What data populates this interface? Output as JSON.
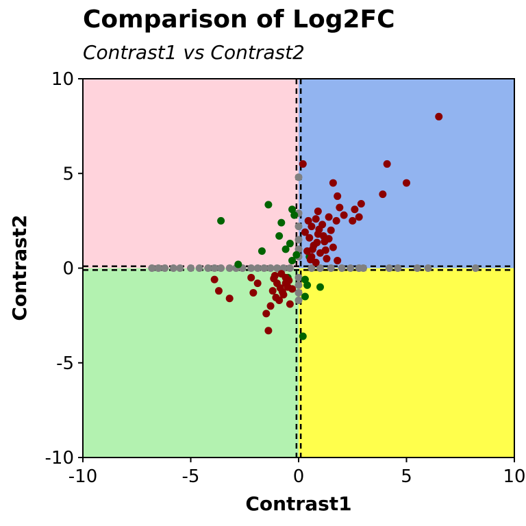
{
  "chart_data": {
    "type": "scatter",
    "title": "Comparison of Log2FC",
    "subtitle": "Contrast1 vs Contrast2",
    "xlabel": "Contrast1",
    "ylabel": "Contrast2",
    "xlim": [
      -10,
      10
    ],
    "ylim": [
      -10,
      10
    ],
    "xticks": [
      -10,
      -5,
      0,
      5,
      10
    ],
    "yticks": [
      -10,
      -5,
      0,
      5,
      10
    ],
    "xtick_labels": [
      "-10",
      "-5",
      "0",
      "5",
      "10"
    ],
    "ytick_labels": [
      "-10",
      "-5",
      "0",
      "5",
      "10"
    ],
    "grid": false,
    "threshold_lines": {
      "x": [
        -0.1,
        0.1
      ],
      "y": [
        -0.1,
        0.1
      ],
      "style": "dashed",
      "color": "#000000"
    },
    "quadrants": [
      {
        "region": "upper-left",
        "color": "#ffd3dc"
      },
      {
        "region": "upper-right",
        "color": "#92b4f0"
      },
      {
        "region": "lower-left",
        "color": "#b3f2b0"
      },
      {
        "region": "lower-right",
        "color": "#ffff4c"
      }
    ],
    "series": [
      {
        "color": "#808080",
        "points": [
          [
            -6.8,
            0
          ],
          [
            -6.5,
            0
          ],
          [
            -6.2,
            0
          ],
          [
            -5.8,
            0
          ],
          [
            -5.5,
            0
          ],
          [
            -5.0,
            0
          ],
          [
            -4.6,
            0
          ],
          [
            -4.2,
            0
          ],
          [
            -3.9,
            0
          ],
          [
            -3.6,
            0
          ],
          [
            -3.2,
            0
          ],
          [
            -2.9,
            0
          ],
          [
            -2.6,
            0
          ],
          [
            -2.2,
            0
          ],
          [
            -1.9,
            0
          ],
          [
            -1.6,
            0
          ],
          [
            -1.3,
            0
          ],
          [
            -1.0,
            0
          ],
          [
            -0.7,
            0
          ],
          [
            -0.4,
            0
          ],
          [
            0.6,
            0
          ],
          [
            1.0,
            0
          ],
          [
            1.5,
            0
          ],
          [
            2.0,
            0
          ],
          [
            2.4,
            0
          ],
          [
            2.8,
            0
          ],
          [
            3.0,
            0
          ],
          [
            4.2,
            0
          ],
          [
            4.6,
            0
          ],
          [
            5.5,
            0
          ],
          [
            6.0,
            0
          ],
          [
            8.2,
            0
          ],
          [
            0,
            4.8
          ],
          [
            0,
            2.9
          ],
          [
            0,
            2.2
          ],
          [
            0,
            1.5
          ],
          [
            0,
            1.0
          ],
          [
            0,
            0.6
          ],
          [
            0,
            -0.5
          ],
          [
            0,
            -0.9
          ],
          [
            0,
            -1.3
          ],
          [
            0,
            -1.7
          ]
        ]
      },
      {
        "color": "#006400",
        "points": [
          [
            -3.6,
            2.5
          ],
          [
            -1.4,
            3.35
          ],
          [
            -0.8,
            2.4
          ],
          [
            -0.9,
            1.7
          ],
          [
            -0.6,
            1.0
          ],
          [
            -0.4,
            1.3
          ],
          [
            -0.3,
            0.4
          ],
          [
            -1.7,
            0.9
          ],
          [
            -2.8,
            0.2
          ],
          [
            -0.5,
            -0.5
          ],
          [
            0.3,
            -0.6
          ],
          [
            0.4,
            -0.9
          ],
          [
            0.3,
            -1.5
          ],
          [
            0.2,
            -3.6
          ],
          [
            1.0,
            -1.0
          ],
          [
            0.5,
            0.6
          ],
          [
            -0.2,
            2.8
          ],
          [
            -0.3,
            3.1
          ],
          [
            -0.1,
            0.7
          ]
        ]
      },
      {
        "color": "#8b0000",
        "points": [
          [
            6.5,
            8.0
          ],
          [
            4.1,
            5.5
          ],
          [
            5.0,
            4.5
          ],
          [
            0.2,
            5.5
          ],
          [
            1.6,
            4.5
          ],
          [
            3.9,
            3.9
          ],
          [
            1.8,
            3.8
          ],
          [
            2.9,
            3.4
          ],
          [
            1.9,
            3.2
          ],
          [
            2.6,
            3.1
          ],
          [
            0.9,
            3.0
          ],
          [
            2.1,
            2.8
          ],
          [
            2.8,
            2.7
          ],
          [
            2.5,
            2.5
          ],
          [
            1.4,
            2.7
          ],
          [
            0.8,
            2.6
          ],
          [
            1.1,
            2.3
          ],
          [
            0.6,
            2.2
          ],
          [
            1.5,
            2.0
          ],
          [
            0.9,
            1.8
          ],
          [
            0.5,
            1.6
          ],
          [
            1.2,
            1.4
          ],
          [
            0.7,
            1.2
          ],
          [
            1.6,
            1.1
          ],
          [
            0.4,
            0.9
          ],
          [
            1.0,
            0.8
          ],
          [
            0.6,
            0.6
          ],
          [
            1.3,
            0.5
          ],
          [
            0.8,
            0.3
          ],
          [
            1.8,
            0.4
          ],
          [
            0.3,
            1.9
          ],
          [
            0.45,
            2.5
          ],
          [
            1.15,
            1.7
          ],
          [
            0.65,
            1.0
          ],
          [
            1.4,
            1.55
          ],
          [
            0.95,
            2.05
          ],
          [
            0.55,
            0.45
          ],
          [
            1.75,
            2.5
          ],
          [
            0.85,
            1.35
          ],
          [
            1.25,
            0.95
          ],
          [
            -0.8,
            -0.3
          ],
          [
            -0.6,
            -0.5
          ],
          [
            -1.0,
            -0.8
          ],
          [
            -0.5,
            -1.0
          ],
          [
            -1.2,
            -1.2
          ],
          [
            -0.7,
            -1.4
          ],
          [
            -0.9,
            -1.7
          ],
          [
            -1.3,
            -2.0
          ],
          [
            -0.4,
            -1.9
          ],
          [
            -1.5,
            -2.4
          ],
          [
            -1.4,
            -3.3
          ],
          [
            -1.9,
            -0.8
          ],
          [
            -2.1,
            -1.3
          ],
          [
            -2.2,
            -0.5
          ],
          [
            -3.2,
            -1.6
          ],
          [
            -3.7,
            -1.2
          ],
          [
            -3.9,
            -0.6
          ],
          [
            -0.6,
            -0.8
          ],
          [
            -1.1,
            -0.4
          ],
          [
            -0.3,
            -1.1
          ],
          [
            -0.85,
            -1.05
          ],
          [
            -1.15,
            -0.55
          ],
          [
            -0.45,
            -0.65
          ],
          [
            -0.75,
            -1.25
          ],
          [
            -1.05,
            -1.55
          ]
        ]
      }
    ]
  }
}
